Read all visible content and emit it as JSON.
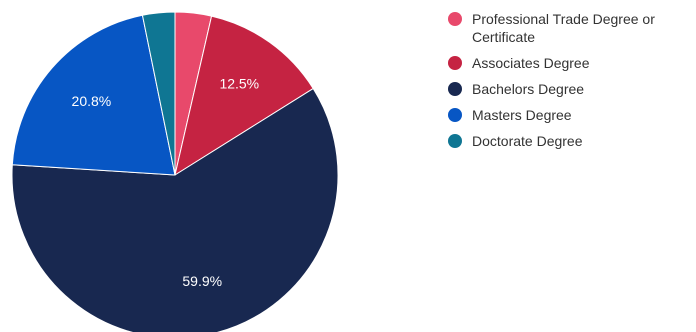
{
  "chart_data": {
    "type": "pie",
    "categories": [
      "Professional Trade Degree or Certificate",
      "Associates Degree",
      "Bachelors Degree",
      "Masters Degree",
      "Doctorate Degree"
    ],
    "values": [
      3.6,
      12.5,
      59.9,
      20.8,
      3.2
    ],
    "data_labels": [
      "",
      "12.5%",
      "59.9%",
      "20.8%",
      ""
    ],
    "colors": [
      "#e8496b",
      "#c52342",
      "#182850",
      "#0756c4",
      "#0f7693"
    ],
    "legend_position": "right"
  }
}
